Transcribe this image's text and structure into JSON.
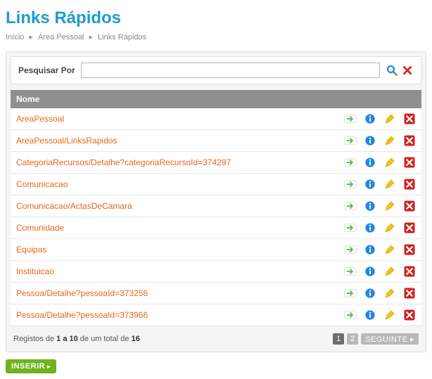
{
  "colors": {
    "title": "#1e9dcb",
    "link": "#e06a1a",
    "header_bg": "#8f8f8f",
    "panel_bg": "#f5f5f5",
    "border": "#dcdcdc",
    "insert_btn": "#6fb31e",
    "pager_inactive": "#b9b9b9",
    "pager_active": "#6d6d6d",
    "delete_bg": "#d32121",
    "info_fill": "#1e88e5",
    "edit_fill": "#f1c40f",
    "goto_fill": "#5cb85c",
    "search_fill": "#1e88e5",
    "clear_fill": "#d32121"
  },
  "page": {
    "title": "Links Rápidos"
  },
  "breadcrumb": {
    "items": [
      "Início",
      "Área Pessoal",
      "Links Rápidos"
    ],
    "sep": "▸"
  },
  "search": {
    "label": "Pesquisar Por",
    "value": "",
    "placeholder": ""
  },
  "table": {
    "header": "Nome",
    "rows": [
      {
        "name": "AreaPessoal"
      },
      {
        "name": "AreaPessoal/LinksRapidos"
      },
      {
        "name": "CategoriaRecursos/Detalhe?categoriaRecursoId=374297"
      },
      {
        "name": "Comunicacao"
      },
      {
        "name": "Comunicacao/ActasDeCamara"
      },
      {
        "name": "Comunidade"
      },
      {
        "name": "Equipas"
      },
      {
        "name": "Instituicao"
      },
      {
        "name": "Pessoa/Detalhe?pessoaId=373256"
      },
      {
        "name": "Pessoa/Detalhe?pessoaId=373966"
      }
    ]
  },
  "records": {
    "prefix": "Registos de ",
    "range": "1 a 10",
    "middle": " de um total de ",
    "total": "16"
  },
  "pager": {
    "pages": [
      {
        "label": "1",
        "active": true
      },
      {
        "label": "2",
        "active": false
      }
    ],
    "next": "SEGUINTE ▸"
  },
  "buttons": {
    "insert": "INSERIR"
  }
}
